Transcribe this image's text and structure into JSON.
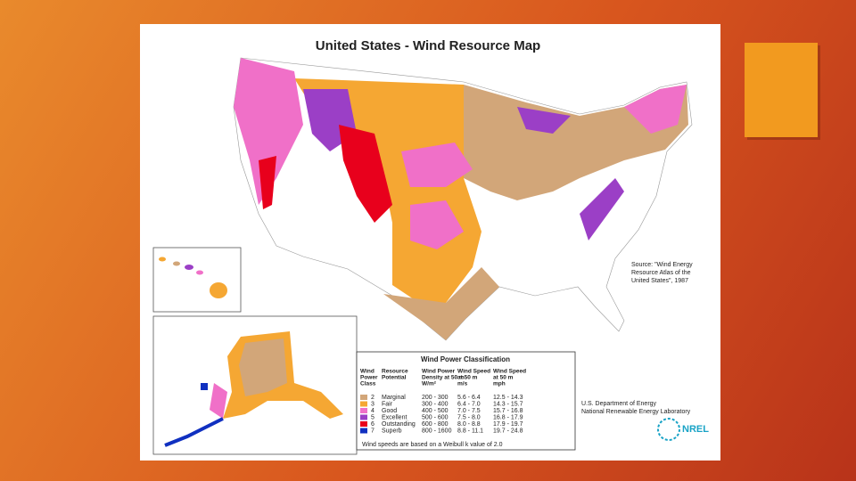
{
  "map": {
    "title": "United States - Wind Resource Map",
    "source": [
      "Source: \"Wind Energy",
      "Resource Atlas of the",
      "United States\", 1987"
    ],
    "agency": [
      "U.S. Department of Energy",
      "National Renewable Energy Laboratory"
    ],
    "logo": "NREL",
    "legend": {
      "title": "Wind Power Classification",
      "headers": [
        [
          "Wind",
          "Power",
          "Class"
        ],
        [
          "Resource",
          "Potential"
        ],
        [
          "Wind Power",
          "Density at 50 m",
          "W/m²"
        ],
        [
          "Wind Speed",
          "at 50 m",
          "m/s"
        ],
        [
          "Wind Speed",
          "at 50 m",
          "mph"
        ]
      ],
      "rows": [
        [
          "2",
          "Marginal",
          "200 - 300",
          "5.6 - 6.4",
          "12.5 - 14.3"
        ],
        [
          "3",
          "Fair",
          "300 - 400",
          "6.4 - 7.0",
          "14.3 - 15.7"
        ],
        [
          "4",
          "Good",
          "400 - 500",
          "7.0 - 7.5",
          "15.7 - 16.8"
        ],
        [
          "5",
          "Excellent",
          "500 - 600",
          "7.5 - 8.0",
          "16.8 - 17.9"
        ],
        [
          "6",
          "Outstanding",
          "600 - 800",
          "8.0 - 8.8",
          "17.9 - 19.7"
        ],
        [
          "7",
          "Superb",
          "800 - 1600",
          "8.8 - 11.1",
          "19.7 - 24.8"
        ]
      ],
      "colors": [
        "#d2a679",
        "#f5a733",
        "#f070c8",
        "#9b3fc6",
        "#e8001c",
        "#1030c0"
      ],
      "footnote": "Wind speeds are based on a Weibull k value of 2.0"
    }
  }
}
